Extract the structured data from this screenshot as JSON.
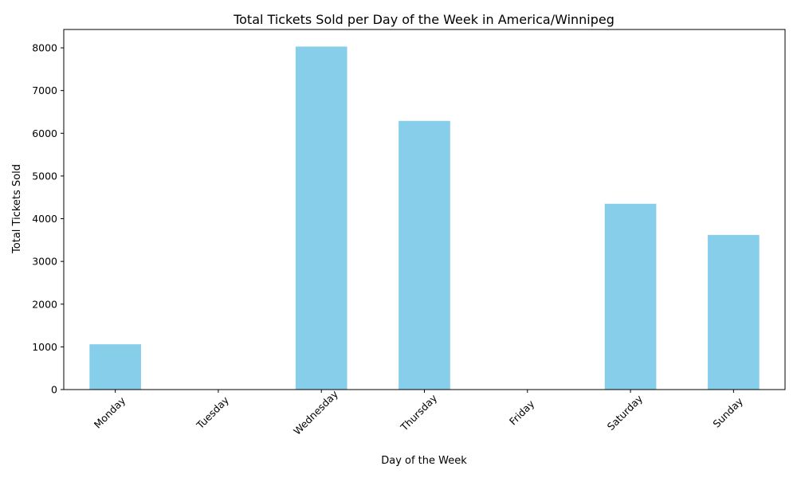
{
  "chart_data": {
    "type": "bar",
    "title": "Total Tickets Sold per Day of the Week in America/Winnipeg",
    "xlabel": "Day of the Week",
    "ylabel": "Total Tickets Sold",
    "categories": [
      "Monday",
      "Tuesday",
      "Wednesday",
      "Thursday",
      "Friday",
      "Saturday",
      "Sunday"
    ],
    "values": [
      1060,
      0,
      8030,
      6290,
      0,
      4350,
      3620
    ],
    "ylim": [
      0,
      8430
    ],
    "yticks": [
      0,
      1000,
      2000,
      3000,
      4000,
      5000,
      6000,
      7000,
      8000
    ],
    "grid": false,
    "legend": "none",
    "bar_color": "#87ceeb"
  }
}
